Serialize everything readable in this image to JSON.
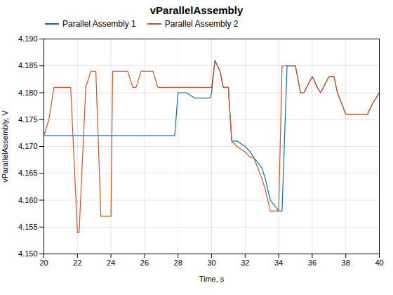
{
  "chart_data": {
    "type": "line",
    "title": "vParallelAssembly",
    "xlabel": "Time, s",
    "ylabel": "vParallelAssembly, V",
    "xlim": [
      20,
      40
    ],
    "ylim": [
      4.15,
      4.19
    ],
    "xticks": [
      20,
      22,
      24,
      26,
      28,
      30,
      32,
      34,
      36,
      38,
      40
    ],
    "yticks": [
      {
        "value": 4.15,
        "label": "4.150"
      },
      4.155,
      {
        "value": 4.16,
        "label": "4.160"
      },
      4.165,
      {
        "value": 4.17,
        "label": "4.170"
      },
      4.175,
      {
        "value": 4.18,
        "label": "4.180"
      },
      4.185,
      {
        "value": 4.19,
        "label": "4.190"
      }
    ],
    "grid": true,
    "legend": "upper left",
    "series": [
      {
        "name": "Parallel Assembly 1",
        "color": "#0072bd",
        "x": [
          20.0,
          20.5,
          21.0,
          21.3,
          21.6,
          22.0,
          22.1,
          22.5,
          23.0,
          23.3,
          23.6,
          24.0,
          24.1,
          24.5,
          25.0,
          25.5,
          26.0,
          26.5,
          27.0,
          27.2,
          27.5,
          27.8,
          28.0,
          28.5,
          29.0,
          29.5,
          29.9,
          30.0,
          30.2,
          30.5,
          30.7,
          31.0,
          31.2,
          31.5,
          32.0,
          32.3,
          32.5,
          33.0,
          33.2,
          33.5,
          34.0,
          34.2,
          34.5,
          35.0,
          35.3,
          35.5,
          36.0,
          36.3,
          36.5,
          37.0,
          37.3,
          37.5,
          38.0,
          38.5,
          39.0,
          39.3,
          39.6,
          40.0
        ],
        "values": [
          4.172,
          4.172,
          4.172,
          4.172,
          4.172,
          4.172,
          4.172,
          4.172,
          4.172,
          4.172,
          4.172,
          4.172,
          4.172,
          4.172,
          4.172,
          4.172,
          4.172,
          4.172,
          4.172,
          4.172,
          4.172,
          4.172,
          4.18,
          4.18,
          4.179,
          4.179,
          4.179,
          4.18,
          4.186,
          4.184,
          4.181,
          4.181,
          4.171,
          4.171,
          4.17,
          4.169,
          4.168,
          4.166,
          4.164,
          4.16,
          4.158,
          4.158,
          4.185,
          4.185,
          4.18,
          4.18,
          4.183,
          4.181,
          4.18,
          4.183,
          4.183,
          4.18,
          4.176,
          4.176,
          4.176,
          4.176,
          4.178,
          4.18
        ]
      },
      {
        "name": "Parallel Assembly 2",
        "color": "#d95319",
        "x": [
          20.0,
          20.3,
          20.6,
          21.0,
          21.3,
          21.6,
          22.0,
          22.1,
          22.5,
          22.8,
          23.0,
          23.1,
          23.4,
          23.6,
          24.0,
          24.1,
          24.4,
          24.5,
          24.8,
          25.0,
          25.3,
          25.5,
          25.8,
          26.0,
          26.3,
          26.5,
          26.8,
          27.0,
          27.2,
          27.5,
          27.8,
          28.0,
          28.5,
          29.0,
          29.5,
          29.9,
          30.0,
          30.2,
          30.5,
          30.7,
          31.0,
          31.2,
          31.5,
          32.0,
          32.3,
          32.5,
          33.0,
          33.2,
          33.5,
          34.0,
          34.2,
          34.5,
          35.0,
          35.3,
          35.5,
          36.0,
          36.3,
          36.5,
          37.0,
          37.3,
          37.5,
          38.0,
          38.5,
          39.0,
          39.3,
          39.6,
          40.0
        ],
        "values": [
          4.172,
          4.175,
          4.181,
          4.181,
          4.181,
          4.181,
          4.154,
          4.154,
          4.181,
          4.184,
          4.184,
          4.184,
          4.157,
          4.157,
          4.157,
          4.184,
          4.184,
          4.184,
          4.184,
          4.184,
          4.181,
          4.181,
          4.184,
          4.184,
          4.184,
          4.184,
          4.181,
          4.181,
          4.181,
          4.181,
          4.181,
          4.181,
          4.181,
          4.181,
          4.181,
          4.181,
          4.181,
          4.186,
          4.184,
          4.181,
          4.181,
          4.171,
          4.17,
          4.169,
          4.168,
          4.168,
          4.164,
          4.162,
          4.158,
          4.158,
          4.185,
          4.185,
          4.185,
          4.18,
          4.18,
          4.183,
          4.181,
          4.18,
          4.183,
          4.183,
          4.18,
          4.176,
          4.176,
          4.176,
          4.176,
          4.178,
          4.18
        ]
      }
    ]
  }
}
